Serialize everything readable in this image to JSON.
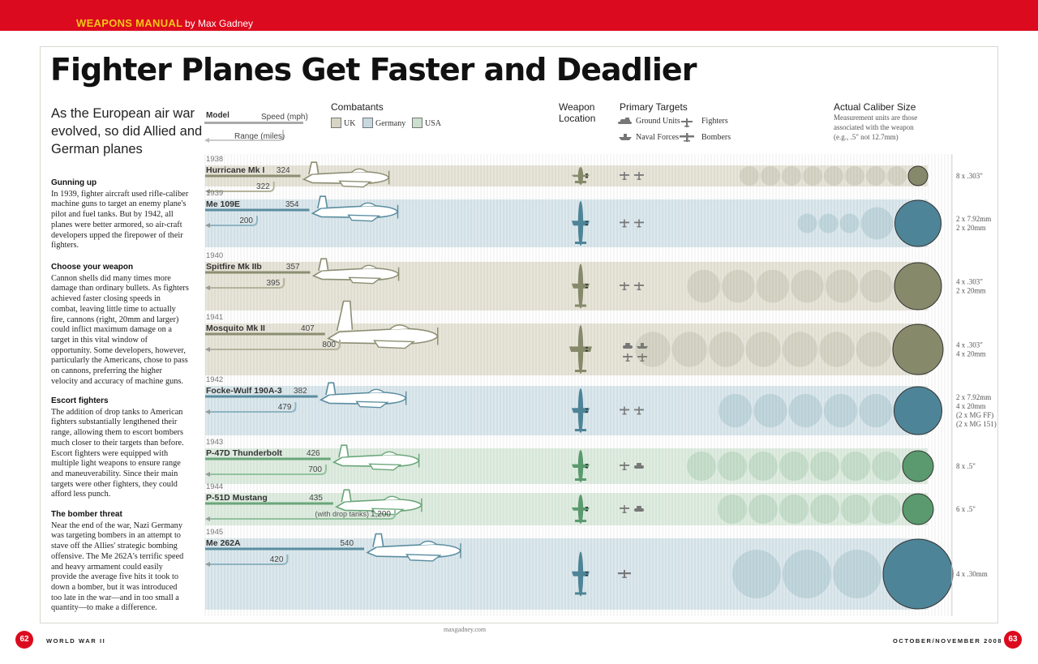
{
  "header": {
    "brand": "WEAPONS MANUAL",
    "author": "by Max Gadney"
  },
  "title": "Fighter Planes Get Faster and Deadlier",
  "intro": "As the European air war evolved, so did Allied and German planes",
  "sections": [
    {
      "heading": "Gunning up",
      "body": "In 1939, fighter aircraft used rifle-caliber machine guns to target an enemy plane's pilot and fuel tanks. But by 1942, all planes were better armored, so air-craft developers upped the firepower of their fighters."
    },
    {
      "heading": "Choose your weapon",
      "body": "Cannon shells did many times more damage than ordinary bullets. As fighters achieved faster closing speeds in combat, leaving little time to actually fire, cannons (right, 20mm and larger) could inflict maximum damage on a target in this vital window of opportunity. Some developers, however, particularly the Americans, chose to pass on cannons, preferring the higher velocity and accuracy of machine guns."
    },
    {
      "heading": "Escort fighters",
      "body": "The addition of drop tanks to American fighters substantially lengthened their range, allowing them to escort bombers much closer to their targets than before. Escort fighters were equipped with multiple light weapons to ensure range and maneuverability. Since their main targets were other fighters, they could afford less punch."
    },
    {
      "heading": "The bomber threat",
      "body": "Near the end of the war, Nazi Germany was targeting bombers in an attempt to stave off the Allies' strategic bombing offensive. The Me 262A's terrific speed and heavy armament could easily provide the average five hits it took to down a bomber, but it was introduced too late in the war—and in too small a quantity—to make a difference."
    }
  ],
  "legend": {
    "model": "Model",
    "speed": "Speed (mph)",
    "range": "Range (miles)",
    "combatants_title": "Combatants",
    "weapon_location_title": "Weapon Location",
    "primary_targets_title": "Primary Targets",
    "targets": {
      "ground": "Ground Units",
      "fighters": "Fighters",
      "naval": "Naval Forces",
      "bombers": "Bombers"
    },
    "caliber_title": "Actual Caliber Size",
    "caliber_note": [
      "Measurement units are those",
      "associated with the weapon",
      "(e.g., .5\" not 12.7mm)"
    ]
  },
  "colors": {
    "UK": {
      "fill": "#d8d4c4",
      "light": "#ecebe2",
      "dark": "#868a6b",
      "line": "#8c8e72"
    },
    "Germany": {
      "fill": "#c6d9e0",
      "light": "#e5eef1",
      "dark": "#4e8497",
      "line": "#5a8da0"
    },
    "USA": {
      "fill": "#cbe0cd",
      "light": "#e7f1e8",
      "dark": "#5a9a6e",
      "line": "#6aa67a"
    }
  },
  "chart_data": {
    "type": "table",
    "combatants": [
      "UK",
      "Germany",
      "USA"
    ],
    "rows": [
      {
        "year": "1938",
        "model": "Hurricane Mk I",
        "combatant": "UK",
        "speed": 324,
        "range": 322,
        "range_label": "322",
        "targets": [
          "fighters",
          "fighters"
        ],
        "weapons": [
          "8 x .303\""
        ],
        "circle_count": 9
      },
      {
        "year": "1939",
        "model": "Me 109E",
        "combatant": "Germany",
        "speed": 354,
        "range": 200,
        "range_label": "200",
        "targets": [
          "fighters",
          "fighters"
        ],
        "weapons": [
          "2 x 7.92mm",
          "2 x 20mm"
        ],
        "circle_count": 5
      },
      {
        "year": "1940",
        "model": "Spitfire Mk IIb",
        "combatant": "UK",
        "speed": 357,
        "range": 395,
        "range_label": "395",
        "targets": [
          "fighters",
          "fighters"
        ],
        "weapons": [
          "4 x .303\"",
          "2 x 20mm"
        ],
        "circle_count": 7
      },
      {
        "year": "1941",
        "model": "Mosquito Mk II",
        "combatant": "UK",
        "speed": 407,
        "range": 800,
        "range_label": "800",
        "targets": [
          "ground",
          "naval",
          "fighters",
          "fighters"
        ],
        "weapons": [
          "4 x .303\"",
          "4 x 20mm"
        ],
        "circle_count": 8
      },
      {
        "year": "1942",
        "model": "Focke-Wulf 190A-3",
        "combatant": "Germany",
        "speed": 382,
        "range": 479,
        "range_label": "479",
        "targets": [
          "fighters",
          "fighters"
        ],
        "weapons": [
          "2 x 7.92mm",
          "4 x 20mm",
          "(2 x MG FF)",
          "(2 x MG 151)"
        ],
        "circle_count": 6
      },
      {
        "year": "1943",
        "model": "P-47D Thunderbolt",
        "combatant": "USA",
        "speed": 426,
        "range": 700,
        "range_label": "700",
        "targets": [
          "fighters",
          "ground"
        ],
        "weapons": [
          "8 x .5\""
        ],
        "circle_count": 8
      },
      {
        "year": "1944",
        "model": "P-51D Mustang",
        "combatant": "USA",
        "speed": 435,
        "range": 1200,
        "range_label": "1,200",
        "range_note": "(with drop tanks)",
        "targets": [
          "fighters",
          "ground"
        ],
        "weapons": [
          "6 x .5\""
        ],
        "circle_count": 7
      },
      {
        "year": "1945",
        "model": "Me 262A",
        "combatant": "Germany",
        "speed": 540,
        "range": 420,
        "range_label": "420",
        "targets": [
          "bombers"
        ],
        "weapons": [
          "4 x .30mm"
        ],
        "circle_count": 4
      }
    ]
  },
  "footer": {
    "url": "maxgadney.com",
    "left_page": "62",
    "left_label": "WORLD WAR II",
    "right_label": "OCTOBER/NOVEMBER 2008",
    "right_page": "63"
  }
}
